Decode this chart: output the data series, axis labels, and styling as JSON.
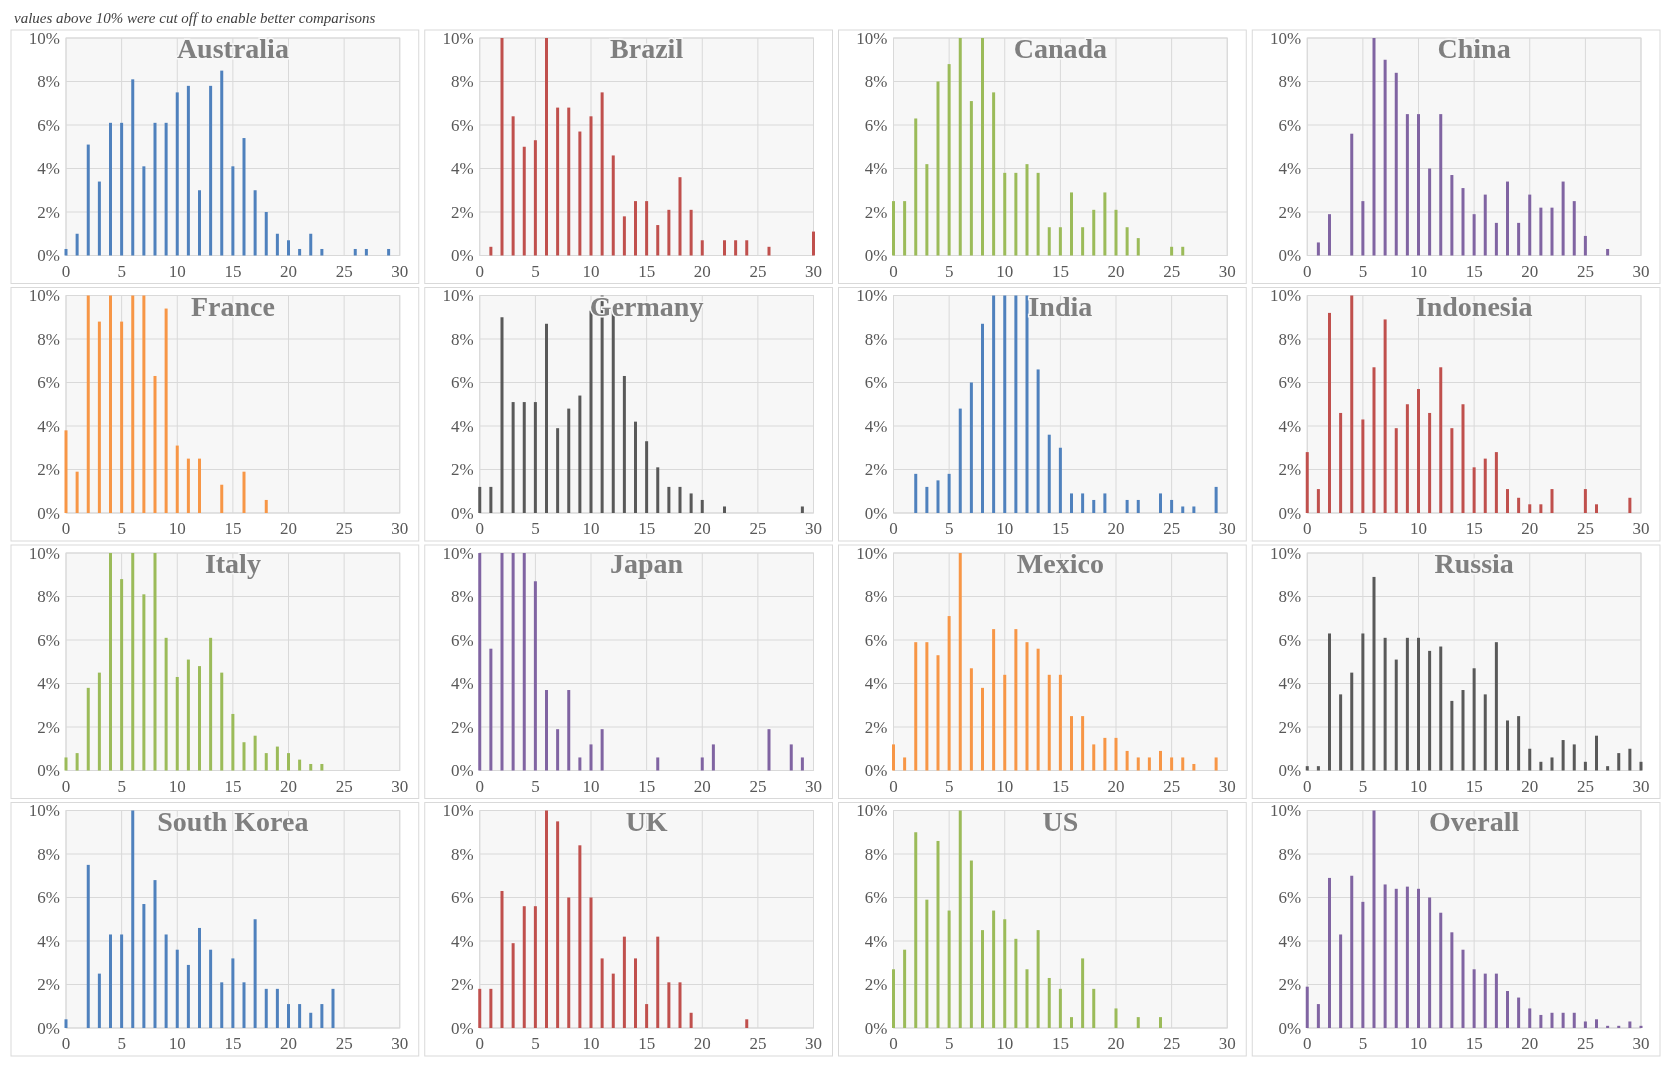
{
  "chart_data": [
    {
      "type": "bar",
      "title": "Australia",
      "annotations": [
        "values above 10% were cut off to enable better comparisons"
      ],
      "color": "#4f81bd",
      "x": [
        0,
        1,
        2,
        3,
        4,
        5,
        6,
        7,
        8,
        9,
        10,
        11,
        12,
        13,
        14,
        15,
        16,
        17,
        18,
        19,
        20,
        21,
        22,
        23,
        26,
        27,
        29
      ],
      "values": [
        0.3,
        1.0,
        5.1,
        3.4,
        6.1,
        6.1,
        8.1,
        4.1,
        6.1,
        6.1,
        7.5,
        7.8,
        3.0,
        7.8,
        8.5,
        4.1,
        5.4,
        3.0,
        2.0,
        1.0,
        0.7,
        0.3,
        1.0,
        0.3,
        0.3,
        0.3,
        0.3
      ],
      "xlim": [
        0,
        30
      ],
      "xticks": [
        0,
        5,
        10,
        15,
        20,
        25,
        30
      ],
      "ylim": [
        0,
        10
      ],
      "yticks": [
        {
          "value": 0,
          "label": "0%"
        },
        {
          "value": 2,
          "label": "2%"
        },
        {
          "value": 4,
          "label": "4%"
        },
        {
          "value": 6,
          "label": "6%"
        },
        {
          "value": 8,
          "label": "8%"
        },
        {
          "value": 10,
          "label": "10%"
        }
      ],
      "grid": true
    },
    {
      "type": "bar",
      "title": "Brazil",
      "color": "#c0504d",
      "x": [
        1,
        2,
        3,
        4,
        5,
        6,
        7,
        8,
        9,
        10,
        11,
        12,
        13,
        14,
        15,
        16,
        17,
        18,
        19,
        20,
        22,
        23,
        24,
        26,
        30
      ],
      "values": [
        0.4,
        10,
        6.4,
        5.0,
        5.3,
        10,
        6.8,
        6.8,
        5.7,
        6.4,
        7.5,
        4.6,
        1.8,
        2.5,
        2.5,
        1.4,
        2.1,
        3.6,
        2.1,
        0.7,
        0.7,
        0.7,
        0.7,
        0.4,
        1.1
      ],
      "xlim": [
        0,
        30
      ],
      "xticks": [
        0,
        5,
        10,
        15,
        20,
        25,
        30
      ],
      "ylim": [
        0,
        10
      ],
      "yticks": [
        {
          "value": 0,
          "label": "0%"
        },
        {
          "value": 2,
          "label": "2%"
        },
        {
          "value": 4,
          "label": "4%"
        },
        {
          "value": 6,
          "label": "6%"
        },
        {
          "value": 8,
          "label": "8%"
        },
        {
          "value": 10,
          "label": "10%"
        }
      ],
      "grid": true
    },
    {
      "type": "bar",
      "title": "Canada",
      "color": "#9bbb59",
      "x": [
        0,
        1,
        2,
        3,
        4,
        5,
        6,
        7,
        8,
        9,
        10,
        11,
        12,
        13,
        14,
        15,
        16,
        17,
        18,
        19,
        20,
        21,
        22,
        25,
        26
      ],
      "values": [
        2.5,
        2.5,
        6.3,
        4.2,
        8.0,
        8.8,
        10,
        7.1,
        10,
        7.5,
        3.8,
        3.8,
        4.2,
        3.8,
        1.3,
        1.3,
        2.9,
        1.3,
        2.1,
        2.9,
        2.1,
        1.3,
        0.8,
        0.4,
        0.4
      ],
      "xlim": [
        0,
        30
      ],
      "xticks": [
        0,
        5,
        10,
        15,
        20,
        25,
        30
      ],
      "ylim": [
        0,
        10
      ],
      "yticks": [
        {
          "value": 0,
          "label": "0%"
        },
        {
          "value": 2,
          "label": "2%"
        },
        {
          "value": 4,
          "label": "4%"
        },
        {
          "value": 6,
          "label": "6%"
        },
        {
          "value": 8,
          "label": "8%"
        },
        {
          "value": 10,
          "label": "10%"
        }
      ],
      "grid": true
    },
    {
      "type": "bar",
      "title": "China",
      "color": "#8064a2",
      "x": [
        1,
        2,
        4,
        5,
        6,
        7,
        8,
        9,
        10,
        11,
        12,
        13,
        14,
        15,
        16,
        17,
        18,
        19,
        20,
        21,
        22,
        23,
        24,
        25,
        27
      ],
      "values": [
        0.6,
        1.9,
        5.6,
        2.5,
        10,
        9.0,
        8.4,
        6.5,
        6.5,
        4.0,
        6.5,
        3.7,
        3.1,
        1.9,
        2.8,
        1.5,
        3.4,
        1.5,
        2.8,
        2.2,
        2.2,
        3.4,
        2.5,
        0.9,
        0.3
      ],
      "xlim": [
        0,
        30
      ],
      "xticks": [
        0,
        5,
        10,
        15,
        20,
        25,
        30
      ],
      "ylim": [
        0,
        10
      ],
      "yticks": [
        {
          "value": 0,
          "label": "0%"
        },
        {
          "value": 2,
          "label": "2%"
        },
        {
          "value": 4,
          "label": "4%"
        },
        {
          "value": 6,
          "label": "6%"
        },
        {
          "value": 8,
          "label": "8%"
        },
        {
          "value": 10,
          "label": "10%"
        }
      ],
      "grid": true
    },
    {
      "type": "bar",
      "title": "France",
      "color": "#f79646",
      "x": [
        0,
        1,
        2,
        3,
        4,
        5,
        6,
        7,
        8,
        9,
        10,
        11,
        12,
        14,
        16,
        18
      ],
      "values": [
        3.8,
        1.9,
        10,
        8.8,
        10,
        8.8,
        10,
        10,
        6.3,
        9.4,
        3.1,
        2.5,
        2.5,
        1.3,
        1.9,
        0.6
      ],
      "xlim": [
        0,
        30
      ],
      "xticks": [
        0,
        5,
        10,
        15,
        20,
        25,
        30
      ],
      "ylim": [
        0,
        10
      ],
      "yticks": [
        {
          "value": 0,
          "label": "0%"
        },
        {
          "value": 2,
          "label": "2%"
        },
        {
          "value": 4,
          "label": "4%"
        },
        {
          "value": 6,
          "label": "6%"
        },
        {
          "value": 8,
          "label": "8%"
        },
        {
          "value": 10,
          "label": "10%"
        }
      ],
      "grid": true
    },
    {
      "type": "bar",
      "title": "Germany",
      "color": "#595959",
      "x": [
        0,
        1,
        2,
        3,
        4,
        5,
        6,
        7,
        8,
        9,
        10,
        11,
        12,
        13,
        14,
        15,
        16,
        17,
        18,
        19,
        20,
        22,
        29
      ],
      "values": [
        1.2,
        1.2,
        9.0,
        5.1,
        5.1,
        5.1,
        8.7,
        3.9,
        4.8,
        5.4,
        9.3,
        10,
        9.3,
        6.3,
        4.2,
        3.3,
        2.1,
        1.2,
        1.2,
        0.9,
        0.6,
        0.3,
        0.3
      ],
      "xlim": [
        0,
        30
      ],
      "xticks": [
        0,
        5,
        10,
        15,
        20,
        25,
        30
      ],
      "ylim": [
        0,
        10
      ],
      "yticks": [
        {
          "value": 0,
          "label": "0%"
        },
        {
          "value": 2,
          "label": "2%"
        },
        {
          "value": 4,
          "label": "4%"
        },
        {
          "value": 6,
          "label": "6%"
        },
        {
          "value": 8,
          "label": "8%"
        },
        {
          "value": 10,
          "label": "10%"
        }
      ],
      "grid": true
    },
    {
      "type": "bar",
      "title": "India",
      "color": "#4f81bd",
      "x": [
        2,
        3,
        4,
        5,
        6,
        7,
        8,
        9,
        10,
        11,
        12,
        13,
        14,
        15,
        16,
        17,
        18,
        19,
        21,
        22,
        24,
        25,
        26,
        27,
        29
      ],
      "values": [
        1.8,
        1.2,
        1.5,
        1.8,
        4.8,
        6.0,
        8.7,
        10,
        10,
        10,
        10,
        6.6,
        3.6,
        3.0,
        0.9,
        0.9,
        0.6,
        0.9,
        0.6,
        0.6,
        0.9,
        0.6,
        0.3,
        0.3,
        1.2
      ],
      "xlim": [
        0,
        30
      ],
      "xticks": [
        0,
        5,
        10,
        15,
        20,
        25,
        30
      ],
      "ylim": [
        0,
        10
      ],
      "yticks": [
        {
          "value": 0,
          "label": "0%"
        },
        {
          "value": 2,
          "label": "2%"
        },
        {
          "value": 4,
          "label": "4%"
        },
        {
          "value": 6,
          "label": "6%"
        },
        {
          "value": 8,
          "label": "8%"
        },
        {
          "value": 10,
          "label": "10%"
        }
      ],
      "grid": true
    },
    {
      "type": "bar",
      "title": "Indonesia",
      "color": "#c0504d",
      "x": [
        0,
        1,
        2,
        3,
        4,
        5,
        6,
        7,
        8,
        9,
        10,
        11,
        12,
        13,
        14,
        15,
        16,
        17,
        18,
        19,
        20,
        21,
        22,
        25,
        26,
        29
      ],
      "values": [
        2.8,
        1.1,
        9.2,
        4.6,
        10,
        4.3,
        6.7,
        8.9,
        3.9,
        5.0,
        5.7,
        4.6,
        6.7,
        3.9,
        5.0,
        2.1,
        2.5,
        2.8,
        1.1,
        0.7,
        0.4,
        0.4,
        1.1,
        1.1,
        0.4,
        0.7
      ],
      "xlim": [
        0,
        30
      ],
      "xticks": [
        0,
        5,
        10,
        15,
        20,
        25,
        30
      ],
      "ylim": [
        0,
        10
      ],
      "yticks": [
        {
          "value": 0,
          "label": "0%"
        },
        {
          "value": 2,
          "label": "2%"
        },
        {
          "value": 4,
          "label": "4%"
        },
        {
          "value": 6,
          "label": "6%"
        },
        {
          "value": 8,
          "label": "8%"
        },
        {
          "value": 10,
          "label": "10%"
        }
      ],
      "grid": true
    },
    {
      "type": "bar",
      "title": "Italy",
      "color": "#9bbb59",
      "x": [
        0,
        1,
        2,
        3,
        4,
        5,
        6,
        7,
        8,
        9,
        10,
        11,
        12,
        13,
        14,
        15,
        16,
        17,
        18,
        19,
        20,
        21,
        22,
        23
      ],
      "values": [
        0.6,
        0.8,
        3.8,
        4.5,
        10,
        8.8,
        10,
        8.1,
        10,
        6.1,
        4.3,
        5.1,
        4.8,
        6.1,
        4.5,
        2.6,
        1.3,
        1.6,
        0.8,
        1.1,
        0.8,
        0.5,
        0.3,
        0.3
      ],
      "xlim": [
        0,
        30
      ],
      "xticks": [
        0,
        5,
        10,
        15,
        20,
        25,
        30
      ],
      "ylim": [
        0,
        10
      ],
      "yticks": [
        {
          "value": 0,
          "label": "0%"
        },
        {
          "value": 2,
          "label": "2%"
        },
        {
          "value": 4,
          "label": "4%"
        },
        {
          "value": 6,
          "label": "6%"
        },
        {
          "value": 8,
          "label": "8%"
        },
        {
          "value": 10,
          "label": "10%"
        }
      ],
      "grid": true
    },
    {
      "type": "bar",
      "title": "Japan",
      "color": "#8064a2",
      "x": [
        0,
        1,
        2,
        3,
        4,
        5,
        6,
        7,
        8,
        9,
        10,
        11,
        16,
        20,
        21,
        26,
        28,
        29
      ],
      "values": [
        10,
        5.6,
        10,
        10,
        10,
        8.7,
        3.7,
        1.9,
        3.7,
        0.6,
        1.2,
        1.9,
        0.6,
        0.6,
        1.2,
        1.9,
        1.2,
        0.6
      ],
      "xlim": [
        0,
        30
      ],
      "xticks": [
        0,
        5,
        10,
        15,
        20,
        25,
        30
      ],
      "ylim": [
        0,
        10
      ],
      "yticks": [
        {
          "value": 0,
          "label": "0%"
        },
        {
          "value": 2,
          "label": "2%"
        },
        {
          "value": 4,
          "label": "4%"
        },
        {
          "value": 6,
          "label": "6%"
        },
        {
          "value": 8,
          "label": "8%"
        },
        {
          "value": 10,
          "label": "10%"
        }
      ],
      "grid": true
    },
    {
      "type": "bar",
      "title": "Mexico",
      "color": "#f79646",
      "x": [
        0,
        1,
        2,
        3,
        4,
        5,
        6,
        7,
        8,
        9,
        10,
        11,
        12,
        13,
        14,
        15,
        16,
        17,
        18,
        19,
        20,
        21,
        22,
        23,
        24,
        25,
        26,
        27,
        29
      ],
      "values": [
        1.2,
        0.6,
        5.9,
        5.9,
        5.3,
        7.1,
        10,
        4.7,
        3.8,
        6.5,
        4.4,
        6.5,
        5.9,
        5.6,
        4.4,
        4.4,
        2.5,
        2.5,
        1.2,
        1.5,
        1.5,
        0.9,
        0.6,
        0.6,
        0.9,
        0.6,
        0.6,
        0.3,
        0.6
      ],
      "xlim": [
        0,
        30
      ],
      "xticks": [
        0,
        5,
        10,
        15,
        20,
        25,
        30
      ],
      "ylim": [
        0,
        10
      ],
      "yticks": [
        {
          "value": 0,
          "label": "0%"
        },
        {
          "value": 2,
          "label": "2%"
        },
        {
          "value": 4,
          "label": "4%"
        },
        {
          "value": 6,
          "label": "6%"
        },
        {
          "value": 8,
          "label": "8%"
        },
        {
          "value": 10,
          "label": "10%"
        }
      ],
      "grid": true
    },
    {
      "type": "bar",
      "title": "Russia",
      "color": "#595959",
      "x": [
        0,
        1,
        2,
        3,
        4,
        5,
        6,
        7,
        8,
        9,
        10,
        11,
        12,
        13,
        14,
        15,
        16,
        17,
        18,
        19,
        20,
        21,
        22,
        23,
        24,
        25,
        26,
        27,
        28,
        29,
        30
      ],
      "values": [
        0.2,
        0.2,
        6.3,
        3.5,
        4.5,
        6.3,
        8.9,
        6.1,
        5.1,
        6.1,
        6.1,
        5.5,
        5.7,
        3.2,
        3.7,
        4.7,
        3.5,
        5.9,
        2.3,
        2.5,
        1.0,
        0.4,
        0.6,
        1.4,
        1.2,
        0.4,
        1.6,
        0.2,
        0.8,
        1.0,
        0.4
      ],
      "xlim": [
        0,
        30
      ],
      "xticks": [
        0,
        5,
        10,
        15,
        20,
        25,
        30
      ],
      "ylim": [
        0,
        10
      ],
      "yticks": [
        {
          "value": 0,
          "label": "0%"
        },
        {
          "value": 2,
          "label": "2%"
        },
        {
          "value": 4,
          "label": "4%"
        },
        {
          "value": 6,
          "label": "6%"
        },
        {
          "value": 8,
          "label": "8%"
        },
        {
          "value": 10,
          "label": "10%"
        }
      ],
      "grid": true
    },
    {
      "type": "bar",
      "title": "South Korea",
      "color": "#4f81bd",
      "x": [
        0,
        2,
        3,
        4,
        5,
        6,
        7,
        8,
        9,
        10,
        11,
        12,
        13,
        14,
        15,
        16,
        17,
        18,
        19,
        20,
        21,
        22,
        23,
        24
      ],
      "values": [
        0.4,
        7.5,
        2.5,
        4.3,
        4.3,
        10,
        5.7,
        6.8,
        4.3,
        3.6,
        2.9,
        4.6,
        3.6,
        2.1,
        3.2,
        2.1,
        5.0,
        1.8,
        1.8,
        1.1,
        1.1,
        0.7,
        1.1,
        1.8
      ],
      "xlim": [
        0,
        30
      ],
      "xticks": [
        0,
        5,
        10,
        15,
        20,
        25,
        30
      ],
      "ylim": [
        0,
        10
      ],
      "yticks": [
        {
          "value": 0,
          "label": "0%"
        },
        {
          "value": 2,
          "label": "2%"
        },
        {
          "value": 4,
          "label": "4%"
        },
        {
          "value": 6,
          "label": "6%"
        },
        {
          "value": 8,
          "label": "8%"
        },
        {
          "value": 10,
          "label": "10%"
        }
      ],
      "grid": true
    },
    {
      "type": "bar",
      "title": "UK",
      "color": "#c0504d",
      "x": [
        0,
        1,
        2,
        3,
        4,
        5,
        6,
        7,
        8,
        9,
        10,
        11,
        12,
        13,
        14,
        15,
        16,
        17,
        18,
        19,
        24
      ],
      "values": [
        1.8,
        1.8,
        6.3,
        3.9,
        5.6,
        5.6,
        10,
        9.5,
        6.0,
        8.4,
        6.0,
        3.2,
        2.5,
        4.2,
        3.2,
        1.1,
        4.2,
        2.1,
        2.1,
        0.7,
        0.4
      ],
      "xlim": [
        0,
        30
      ],
      "xticks": [
        0,
        5,
        10,
        15,
        20,
        25,
        30
      ],
      "ylim": [
        0,
        10
      ],
      "yticks": [
        {
          "value": 0,
          "label": "0%"
        },
        {
          "value": 2,
          "label": "2%"
        },
        {
          "value": 4,
          "label": "4%"
        },
        {
          "value": 6,
          "label": "6%"
        },
        {
          "value": 8,
          "label": "8%"
        },
        {
          "value": 10,
          "label": "10%"
        }
      ],
      "grid": true
    },
    {
      "type": "bar",
      "title": "US",
      "color": "#9bbb59",
      "x": [
        0,
        1,
        2,
        3,
        4,
        5,
        6,
        7,
        8,
        9,
        10,
        11,
        12,
        13,
        14,
        15,
        16,
        17,
        18,
        20,
        22,
        24
      ],
      "values": [
        2.7,
        3.6,
        9.0,
        5.9,
        8.6,
        5.4,
        10,
        7.7,
        4.5,
        5.4,
        5.0,
        4.1,
        2.7,
        4.5,
        2.3,
        1.8,
        0.5,
        3.2,
        1.8,
        0.9,
        0.5,
        0.5
      ],
      "xlim": [
        0,
        30
      ],
      "xticks": [
        0,
        5,
        10,
        15,
        20,
        25,
        30
      ],
      "ylim": [
        0,
        10
      ],
      "yticks": [
        {
          "value": 0,
          "label": "0%"
        },
        {
          "value": 2,
          "label": "2%"
        },
        {
          "value": 4,
          "label": "4%"
        },
        {
          "value": 6,
          "label": "6%"
        },
        {
          "value": 8,
          "label": "8%"
        },
        {
          "value": 10,
          "label": "10%"
        }
      ],
      "grid": true
    },
    {
      "type": "bar",
      "title": "Overall",
      "color": "#8064a2",
      "x": [
        0,
        1,
        2,
        3,
        4,
        5,
        6,
        7,
        8,
        9,
        10,
        11,
        12,
        13,
        14,
        15,
        16,
        17,
        18,
        19,
        20,
        21,
        22,
        23,
        24,
        25,
        26,
        27,
        28,
        29,
        30
      ],
      "values": [
        1.9,
        1.1,
        6.9,
        4.3,
        7.0,
        5.8,
        10,
        6.6,
        6.4,
        6.5,
        6.4,
        6.0,
        5.3,
        4.4,
        3.6,
        2.7,
        2.5,
        2.5,
        1.7,
        1.4,
        0.9,
        0.6,
        0.7,
        0.7,
        0.7,
        0.3,
        0.4,
        0.1,
        0.1,
        0.3,
        0.1
      ],
      "xlim": [
        0,
        30
      ],
      "xticks": [
        0,
        5,
        10,
        15,
        20,
        25,
        30
      ],
      "ylim": [
        0,
        10
      ],
      "yticks": [
        {
          "value": 0,
          "label": "0%"
        },
        {
          "value": 2,
          "label": "2%"
        },
        {
          "value": 4,
          "label": "4%"
        },
        {
          "value": 6,
          "label": "6%"
        },
        {
          "value": 8,
          "label": "8%"
        },
        {
          "value": 10,
          "label": "10%"
        }
      ],
      "grid": true
    }
  ]
}
